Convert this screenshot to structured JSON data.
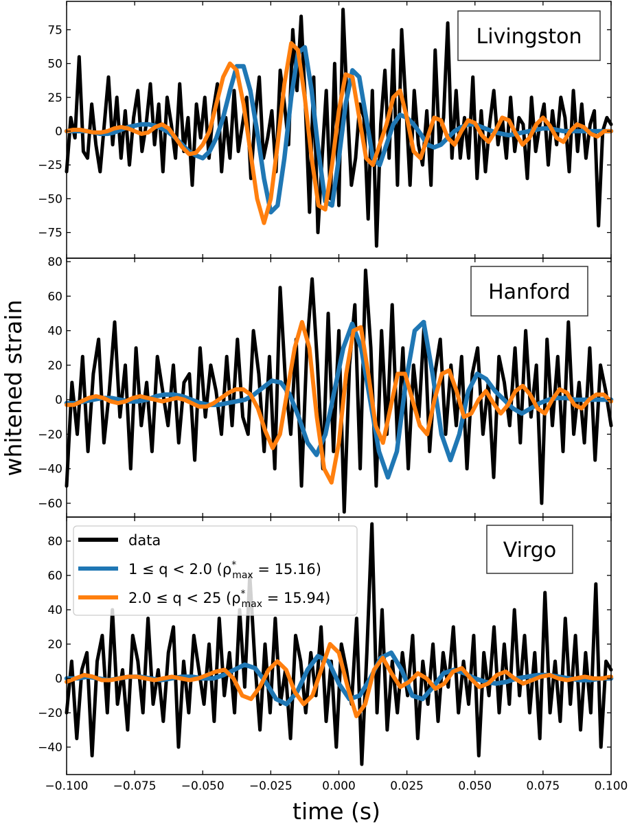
{
  "chart_data": {
    "type": "line",
    "xlabel": "time (s)",
    "ylabel": "whitened strain",
    "xlim": [
      -0.1,
      0.1
    ],
    "x_ticks": [
      -0.1,
      -0.075,
      -0.05,
      -0.025,
      0.0,
      0.025,
      0.05,
      0.075,
      0.1
    ],
    "x_tick_labels": [
      "−0.100",
      "−0.075",
      "−0.050",
      "−0.025",
      "0.000",
      "0.025",
      "0.050",
      "0.075",
      "0.100"
    ],
    "colors": {
      "data": "#000000",
      "low_q": "#1f77b4",
      "high_q": "#ff7f0e"
    },
    "legend": {
      "location": "upper-left of bottom panel",
      "entries": [
        {
          "key": "data",
          "label": "data"
        },
        {
          "key": "low_q",
          "label_prefix": "1 ≤ q < 2.0 (ρ",
          "sup": "*",
          "sub": "max",
          "label_suffix": " = 15.16)"
        },
        {
          "key": "high_q",
          "label_prefix": "2.0 ≤ q < 25 (ρ",
          "sup": "*",
          "sub": "max",
          "label_suffix": " = 15.94)"
        }
      ]
    },
    "panels": [
      {
        "detector": "Livingston",
        "ylim": [
          -94,
          96
        ],
        "y_ticks": [
          -75,
          -50,
          -25,
          0,
          25,
          50,
          75
        ],
        "y_tick_labels": [
          "−75",
          "−50",
          "−25",
          "0",
          "25",
          "50",
          "75"
        ],
        "series": [
          {
            "name": "data",
            "color": "#000000",
            "values": [
              -30,
              10,
              -5,
              55,
              -15,
              -20,
              20,
              -10,
              -30,
              5,
              40,
              -10,
              25,
              -20,
              15,
              -25,
              10,
              30,
              -15,
              5,
              35,
              -10,
              20,
              -30,
              25,
              5,
              -20,
              35,
              -15,
              10,
              -40,
              20,
              -5,
              25,
              -20,
              15,
              35,
              -30,
              10,
              -20,
              30,
              -15,
              5,
              25,
              -35,
              10,
              40,
              -20,
              -5,
              15,
              -30,
              45,
              20,
              -10,
              75,
              30,
              85,
              20,
              -60,
              40,
              -75,
              -20,
              30,
              -50,
              50,
              -55,
              90,
              20,
              -40,
              -20,
              20,
              10,
              -65,
              30,
              -85,
              5,
              45,
              -20,
              60,
              -40,
              75,
              20,
              -40,
              30,
              -10,
              -25,
              15,
              -40,
              60,
              -10,
              10,
              80,
              -20,
              30,
              -20,
              10,
              -20,
              40,
              -35,
              15,
              -30,
              5,
              30,
              -10,
              10,
              -20,
              25,
              -15,
              10,
              5,
              -35,
              25,
              -15,
              5,
              20,
              -25,
              15,
              -10,
              25,
              10,
              -30,
              30,
              -15,
              20,
              -20,
              5,
              15,
              -70,
              0,
              10,
              5
            ]
          },
          {
            "name": "1 ≤ q < 2.0",
            "color": "#1f77b4",
            "values": [
              0,
              0,
              0,
              0,
              -1,
              -2,
              -2,
              -1,
              1,
              3,
              4,
              5,
              5,
              4,
              2,
              -1,
              -5,
              -10,
              -15,
              -18,
              -20,
              -15,
              -5,
              10,
              30,
              48,
              48,
              30,
              0,
              -35,
              -60,
              -55,
              -20,
              25,
              58,
              62,
              30,
              -15,
              -52,
              -55,
              -20,
              20,
              45,
              40,
              10,
              -20,
              -25,
              -10,
              5,
              12,
              10,
              5,
              -2,
              -10,
              -12,
              -10,
              -5,
              0,
              3,
              5,
              5,
              3,
              1,
              -1,
              -2,
              -3,
              -2,
              -1,
              0,
              1,
              2,
              2,
              1,
              0,
              0,
              0,
              0,
              0,
              0,
              0,
              0
            ]
          },
          {
            "name": "2.0 ≤ q < 25",
            "color": "#ff7f0e",
            "values": [
              0,
              1,
              1,
              0,
              -1,
              -1,
              0,
              2,
              3,
              2,
              0,
              -2,
              -1,
              3,
              5,
              2,
              -5,
              -12,
              -17,
              -16,
              -10,
              0,
              20,
              40,
              50,
              45,
              20,
              -15,
              -50,
              -68,
              -50,
              -10,
              35,
              65,
              60,
              25,
              -20,
              -55,
              -58,
              -25,
              15,
              42,
              40,
              10,
              -20,
              -25,
              -10,
              5,
              25,
              30,
              10,
              -15,
              -20,
              -5,
              10,
              8,
              -5,
              -10,
              0,
              8,
              6,
              -3,
              -8,
              0,
              10,
              8,
              -2,
              -10,
              -5,
              5,
              10,
              4,
              -5,
              -8,
              0,
              5,
              3,
              -2,
              -4,
              0,
              0
            ]
          }
        ]
      },
      {
        "detector": "Hanford",
        "ylim": [
          -68,
          82
        ],
        "y_ticks": [
          -60,
          -40,
          -20,
          0,
          20,
          40,
          60,
          80
        ],
        "y_tick_labels": [
          "−60",
          "−40",
          "−20",
          "0",
          "20",
          "40",
          "60",
          "80"
        ],
        "series": [
          {
            "name": "data",
            "color": "#000000",
            "values": [
              -50,
              10,
              -20,
              25,
              -30,
              15,
              35,
              -25,
              5,
              45,
              -10,
              20,
              -40,
              30,
              -15,
              10,
              -30,
              25,
              5,
              -15,
              20,
              -25,
              10,
              15,
              -35,
              30,
              -10,
              20,
              5,
              -20,
              25,
              -15,
              35,
              -10,
              -20,
              40,
              15,
              -30,
              25,
              -40,
              65,
              10,
              -20,
              35,
              -50,
              30,
              70,
              20,
              -40,
              50,
              -30,
              40,
              -65,
              20,
              55,
              -40,
              75,
              30,
              -50,
              40,
              -20,
              55,
              -25,
              30,
              -40,
              20,
              -10,
              45,
              -30,
              15,
              35,
              -20,
              20,
              -15,
              25,
              -40,
              15,
              30,
              -20,
              10,
              -45,
              25,
              10,
              -15,
              30,
              -25,
              40,
              -10,
              20,
              -60,
              35,
              -15,
              25,
              -30,
              45,
              -20,
              10,
              -25,
              30,
              -35,
              20,
              5,
              -15
            ]
          },
          {
            "name": "1 ≤ q < 2.0",
            "color": "#1f77b4",
            "values": [
              -2,
              -2,
              -1,
              0,
              1,
              1,
              0,
              -1,
              -1,
              0,
              2,
              3,
              3,
              2,
              0,
              -2,
              -3,
              -3,
              -2,
              -1,
              0,
              3,
              7,
              11,
              10,
              3,
              -10,
              -25,
              -32,
              -20,
              5,
              30,
              44,
              30,
              0,
              -30,
              -45,
              -30,
              10,
              40,
              45,
              15,
              -20,
              -35,
              -20,
              5,
              15,
              12,
              5,
              0,
              -5,
              -8,
              -5,
              -2,
              0,
              1,
              1,
              0,
              0,
              0,
              0,
              0
            ]
          },
          {
            "name": "2.0 ≤ q < 25",
            "color": "#ff7f0e",
            "values": [
              -3,
              -3,
              -1,
              1,
              2,
              1,
              -1,
              -2,
              -1,
              1,
              2,
              1,
              0,
              -1,
              0,
              1,
              0,
              -2,
              -4,
              -4,
              -2,
              1,
              4,
              6,
              6,
              3,
              -5,
              -18,
              -28,
              -20,
              5,
              30,
              45,
              30,
              -10,
              -40,
              -48,
              -25,
              15,
              40,
              42,
              15,
              -15,
              -25,
              -5,
              15,
              15,
              0,
              -15,
              -20,
              0,
              15,
              17,
              5,
              -10,
              -8,
              0,
              5,
              -2,
              -8,
              -3,
              5,
              8,
              3,
              -5,
              -8,
              0,
              6,
              4,
              -3,
              -5,
              0,
              3,
              3,
              -1
            ]
          }
        ]
      },
      {
        "detector": "Virgo",
        "ylim": [
          -56,
          94
        ],
        "y_ticks": [
          -40,
          -20,
          0,
          20,
          40,
          60,
          80
        ],
        "y_tick_labels": [
          "−40",
          "−20",
          "0",
          "20",
          "40",
          "60",
          "80"
        ],
        "series": [
          {
            "name": "data",
            "color": "#000000",
            "values": [
              -20,
              10,
              -35,
              5,
              15,
              -45,
              10,
              25,
              -20,
              40,
              -15,
              5,
              -30,
              25,
              10,
              -20,
              35,
              -15,
              5,
              -25,
              15,
              30,
              -40,
              10,
              -20,
              25,
              5,
              -15,
              20,
              -25,
              35,
              -10,
              15,
              -20,
              40,
              -5,
              60,
              10,
              -30,
              20,
              -20,
              35,
              -15,
              5,
              -35,
              25,
              10,
              -20,
              15,
              -10,
              30,
              -25,
              10,
              -40,
              20,
              5,
              -15,
              35,
              -50,
              15,
              90,
              -20,
              40,
              -30,
              10,
              -20,
              15,
              -10,
              25,
              -35,
              10,
              -15,
              20,
              -25,
              15,
              -5,
              30,
              -20,
              10,
              -15,
              25,
              -45,
              15,
              -10,
              30,
              -20,
              20,
              -15,
              40,
              -10,
              25,
              -20,
              15,
              -35,
              50,
              -20,
              10,
              -25,
              35,
              -15,
              25,
              -30,
              15,
              -20,
              55,
              -40,
              10,
              5
            ]
          },
          {
            "name": "1 ≤ q < 2.0",
            "color": "#1f77b4",
            "values": [
              0,
              0,
              1,
              0,
              -1,
              0,
              1,
              1,
              0,
              -1,
              0,
              1,
              1,
              0,
              0,
              2,
              5,
              8,
              6,
              -2,
              -12,
              -15,
              -8,
              5,
              13,
              10,
              -3,
              -12,
              -10,
              0,
              12,
              15,
              5,
              -10,
              -12,
              -5,
              3,
              5,
              3,
              0,
              -2,
              -3,
              -2,
              0,
              1,
              2,
              2,
              1,
              0,
              -1,
              -1,
              0,
              0
            ]
          },
          {
            "name": "2.0 ≤ q < 25",
            "color": "#ff7f0e",
            "values": [
              -2,
              0,
              2,
              1,
              -1,
              -1,
              0,
              1,
              1,
              0,
              -1,
              0,
              1,
              0,
              -1,
              0,
              2,
              4,
              5,
              0,
              -10,
              -12,
              -5,
              5,
              10,
              5,
              -8,
              -15,
              -10,
              5,
              20,
              15,
              -5,
              -22,
              -15,
              5,
              12,
              3,
              -5,
              -2,
              3,
              0,
              -6,
              -3,
              4,
              6,
              0,
              -5,
              -3,
              2,
              4,
              0,
              -3,
              -1,
              1,
              2,
              0,
              -1,
              0,
              1,
              0,
              0,
              1
            ]
          }
        ]
      }
    ]
  }
}
